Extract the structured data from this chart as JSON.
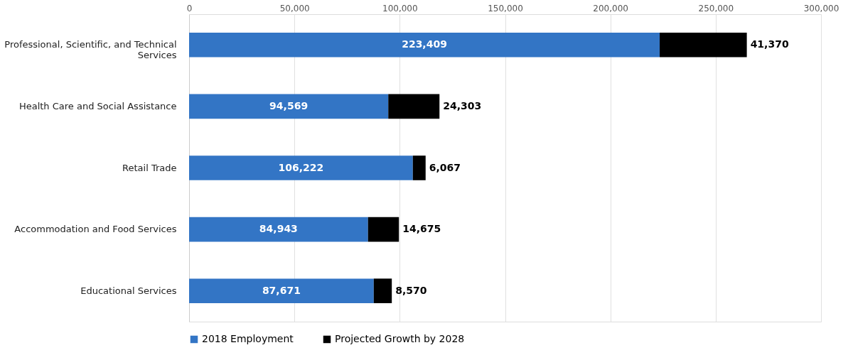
{
  "chart_data": {
    "type": "bar",
    "orientation": "horizontal",
    "stacked": true,
    "categories": [
      "Professional, Scientific, and Technical Services",
      "Health Care and Social Assistance",
      "Retail Trade",
      "Accommodation and Food Services",
      "Educational Services"
    ],
    "series": [
      {
        "name": "2018 Employment",
        "color": "#3375c5",
        "values": [
          223409,
          94569,
          106222,
          84943,
          87671
        ],
        "value_labels": [
          "223,409",
          "94,569",
          "106,222",
          "84,943",
          "87,671"
        ]
      },
      {
        "name": "Projected Growth by 2028",
        "color": "#000000",
        "values": [
          41370,
          24303,
          6067,
          14675,
          8570
        ],
        "value_labels": [
          "41,370",
          "24,303",
          "6,067",
          "14,675",
          "8,570"
        ]
      }
    ],
    "xlim": [
      0,
      300000
    ],
    "xticks": [
      {
        "value": 0,
        "label": "0"
      },
      {
        "value": 50000,
        "label": "50,000"
      },
      {
        "value": 100000,
        "label": "100,000"
      },
      {
        "value": 150000,
        "label": "150,000"
      },
      {
        "value": 200000,
        "label": "200,000"
      },
      {
        "value": 250000,
        "label": "250,000"
      },
      {
        "value": 300000,
        "label": "300,000"
      }
    ],
    "grid": "x",
    "legend": "bottom"
  }
}
